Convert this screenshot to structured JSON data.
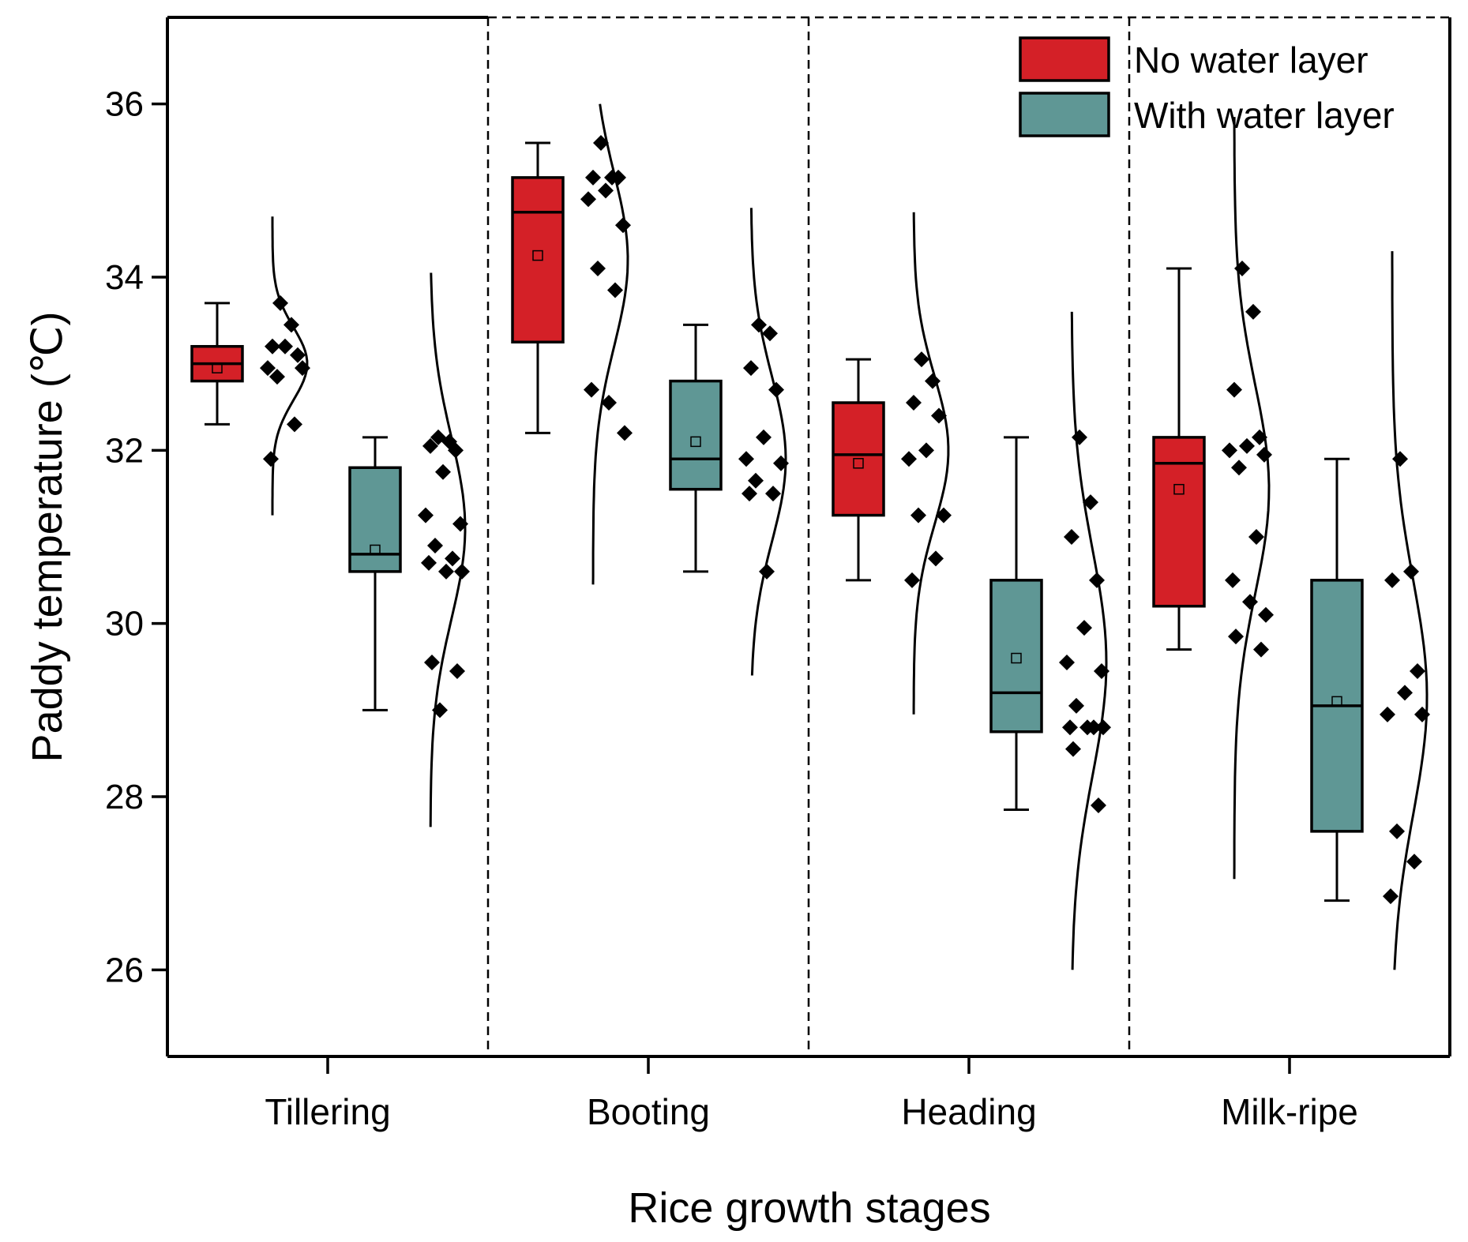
{
  "chart_data": {
    "type": "box",
    "title": "",
    "xlabel": "Rice growth stages",
    "ylabel": "Paddy temperature (℃)",
    "ylim": [
      25,
      37
    ],
    "yticks": [
      26,
      28,
      30,
      32,
      34,
      36
    ],
    "categories": [
      "Tillering",
      "Booting",
      "Heading",
      "Milk-ripe"
    ],
    "series": [
      {
        "name": "No water layer",
        "color": "#d42027",
        "boxes": [
          {
            "min": 32.3,
            "q1": 32.8,
            "median": 33.0,
            "q3": 33.2,
            "max": 33.7,
            "mean": 32.95,
            "points": [
              33.7,
              33.45,
              33.2,
              33.1,
              33.2,
              32.95,
              32.95,
              32.85,
              32.3,
              31.9
            ],
            "density": {
              "mu": 33.0,
              "sigma": 0.42,
              "lo": 31.25,
              "hi": 34.7
            }
          },
          {
            "min": 32.2,
            "q1": 33.25,
            "median": 34.75,
            "q3": 35.15,
            "max": 35.55,
            "mean": 34.25,
            "points": [
              35.55,
              35.15,
              35.15,
              35.15,
              35.0,
              34.9,
              34.6,
              34.1,
              33.85,
              32.7,
              32.55,
              32.2
            ],
            "density": {
              "mu": 34.2,
              "sigma": 1.0,
              "lo": 30.45,
              "hi": 36.0
            }
          },
          {
            "min": 30.5,
            "q1": 31.25,
            "median": 31.95,
            "q3": 32.55,
            "max": 33.05,
            "mean": 31.85,
            "points": [
              33.05,
              32.8,
              32.55,
              32.4,
              32.0,
              31.9,
              31.25,
              31.25,
              30.75,
              30.5
            ],
            "density": {
              "mu": 32.0,
              "sigma": 0.85,
              "lo": 28.95,
              "hi": 34.75
            }
          },
          {
            "min": 29.7,
            "q1": 30.2,
            "median": 31.85,
            "q3": 32.15,
            "max": 34.1,
            "mean": 31.55,
            "points": [
              34.1,
              33.6,
              32.7,
              32.15,
              32.05,
              32.0,
              31.95,
              31.8,
              31.0,
              30.5,
              30.25,
              30.1,
              29.85,
              29.7
            ],
            "density": {
              "mu": 31.55,
              "sigma": 1.2,
              "lo": 27.05,
              "hi": 35.85
            }
          }
        ]
      },
      {
        "name": "With water layer",
        "color": "#5f9795",
        "boxes": [
          {
            "min": 29.0,
            "q1": 30.6,
            "median": 30.8,
            "q3": 31.8,
            "max": 32.15,
            "mean": 30.85,
            "points": [
              32.15,
              32.1,
              32.05,
              32.0,
              31.75,
              31.25,
              31.15,
              30.9,
              30.75,
              30.7,
              30.6,
              30.6,
              29.55,
              29.45,
              29.0
            ],
            "density": {
              "mu": 31.1,
              "sigma": 1.05,
              "lo": 27.65,
              "hi": 34.05
            }
          },
          {
            "min": 30.6,
            "q1": 31.55,
            "median": 31.9,
            "q3": 32.8,
            "max": 33.45,
            "mean": 32.1,
            "points": [
              33.45,
              33.35,
              32.95,
              32.7,
              32.15,
              31.9,
              31.85,
              31.65,
              31.5,
              31.5,
              30.6
            ],
            "density": {
              "mu": 31.9,
              "sigma": 0.95,
              "lo": 29.4,
              "hi": 34.8
            }
          },
          {
            "min": 27.85,
            "q1": 28.75,
            "median": 29.2,
            "q3": 30.5,
            "max": 32.15,
            "mean": 29.6,
            "points": [
              32.15,
              31.4,
              31.0,
              30.5,
              29.95,
              29.55,
              29.45,
              29.05,
              28.8,
              28.8,
              28.8,
              28.8,
              28.55,
              27.9
            ],
            "density": {
              "mu": 29.55,
              "sigma": 1.3,
              "lo": 26.0,
              "hi": 33.6
            }
          },
          {
            "min": 26.8,
            "q1": 27.6,
            "median": 29.05,
            "q3": 30.5,
            "max": 31.9,
            "mean": 29.1,
            "points": [
              31.9,
              30.6,
              30.5,
              29.45,
              29.2,
              28.95,
              28.95,
              27.6,
              27.25,
              26.85
            ],
            "density": {
              "mu": 29.15,
              "sigma": 1.35,
              "lo": 26.0,
              "hi": 34.3
            }
          }
        ]
      }
    ],
    "legend": {
      "position": "top-right",
      "items": [
        "No water layer",
        "With water layer"
      ]
    }
  }
}
